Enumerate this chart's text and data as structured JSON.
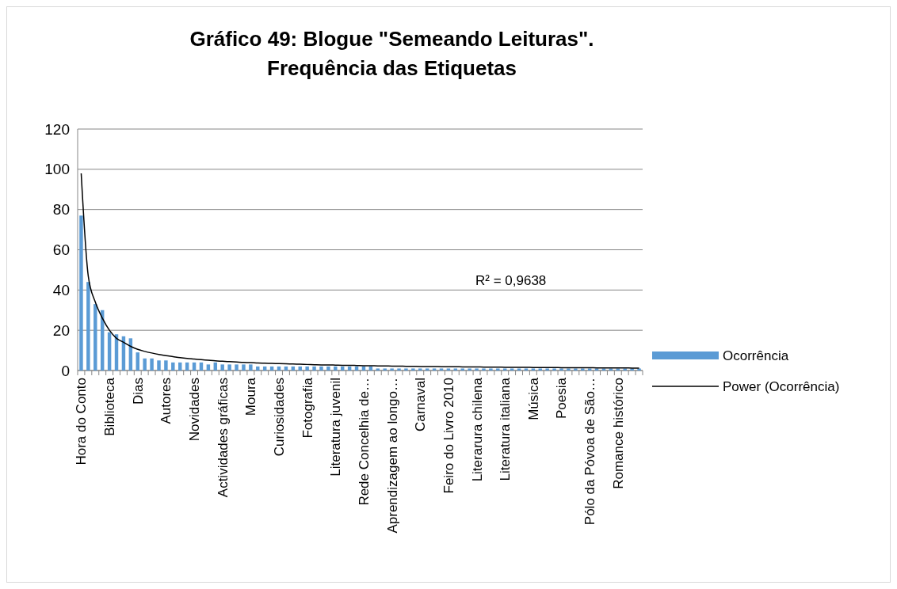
{
  "chart_data": {
    "type": "bar",
    "title": "Gráfico 49: Blogue \"Semeando Leituras\". Frequência das Etiquetas",
    "categories": [
      "Hora do Conto",
      null,
      null,
      null,
      "Biblioteca",
      null,
      null,
      null,
      "Dias",
      null,
      null,
      null,
      "Autores",
      null,
      null,
      null,
      "Novidades",
      null,
      null,
      null,
      "Actividades gráficas",
      null,
      null,
      null,
      "Moura",
      null,
      null,
      null,
      "Curiosidades",
      null,
      null,
      null,
      "Fotografia",
      null,
      null,
      null,
      "Literatura juvenil",
      null,
      null,
      null,
      "Rede Concelhia de…",
      null,
      null,
      null,
      "Aprendizagem ao longo…",
      null,
      null,
      null,
      "Carnaval",
      null,
      null,
      null,
      "Feiro do Livro 2010",
      null,
      null,
      null,
      "Literarura chilena",
      null,
      null,
      null,
      "Literatura italiana",
      null,
      null,
      null,
      "Música",
      null,
      null,
      null,
      "Poesia",
      null,
      null,
      null,
      "Pólo da Póvoa de São…",
      null,
      null,
      null,
      "Romance histórico",
      null,
      null,
      null
    ],
    "series": [
      {
        "name": "Ocorrência",
        "color": "#5b9bd5",
        "values": [
          77,
          44,
          33,
          30,
          19,
          18,
          17,
          16,
          9,
          6,
          6,
          5,
          5,
          4,
          4,
          4,
          4,
          4,
          3,
          4,
          3,
          3,
          3,
          3,
          3,
          2,
          2,
          2,
          2,
          2,
          2,
          2,
          2,
          2,
          2,
          2,
          2,
          2,
          2,
          2,
          2,
          2,
          1,
          1,
          1,
          1,
          1,
          1,
          1,
          1,
          1,
          1,
          1,
          1,
          1,
          1,
          1,
          1,
          1,
          1,
          1,
          1,
          1,
          1,
          1,
          1,
          1,
          1,
          1,
          1,
          1,
          1,
          1,
          1,
          1,
          1,
          1,
          1,
          1,
          1
        ]
      },
      {
        "name": "Power (Ocorrência)",
        "type": "line",
        "color": "#000000",
        "values": [
          98,
          47,
          34,
          26,
          20,
          16,
          14,
          12,
          10.5,
          9.5,
          8.7,
          8,
          7.4,
          6.9,
          6.4,
          6,
          5.7,
          5.4,
          5.1,
          4.8,
          4.6,
          4.4,
          4.2,
          4,
          3.9,
          3.7,
          3.6,
          3.5,
          3.4,
          3.3,
          3.2,
          3.1,
          3,
          2.9,
          2.8,
          2.8,
          2.7,
          2.6,
          2.6,
          2.5,
          2.4,
          2.4,
          2.3,
          2.3,
          2.2,
          2.2,
          2.1,
          2.1,
          2,
          2,
          2,
          1.9,
          1.9,
          1.9,
          1.8,
          1.8,
          1.8,
          1.7,
          1.7,
          1.7,
          1.6,
          1.6,
          1.6,
          1.6,
          1.5,
          1.5,
          1.5,
          1.5,
          1.4,
          1.4,
          1.4,
          1.4,
          1.4,
          1.3,
          1.3,
          1.3,
          1.3,
          1.3,
          1.2,
          1.2
        ]
      }
    ],
    "ylim": [
      0,
      120
    ],
    "yticks": [
      0,
      20,
      40,
      60,
      80,
      100,
      120
    ],
    "grid": "y",
    "legend": "right",
    "annotations": [
      "R² = 0,9638"
    ]
  }
}
